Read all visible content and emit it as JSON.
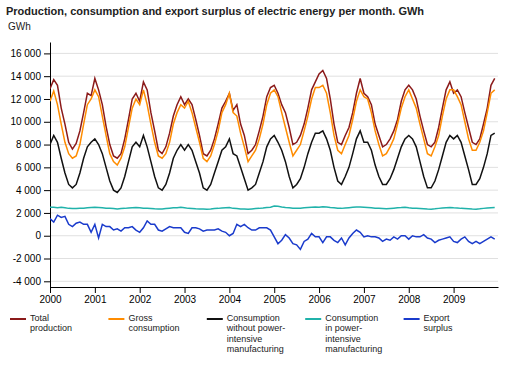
{
  "chart_data": {
    "type": "line",
    "title": "Production, consumption and export surplus of electric energy per month. GWh",
    "ylabel": "GWh",
    "x": [
      2000,
      2000.0833333333333,
      2000.1666666666667,
      2000.25,
      2000.3333333333333,
      2000.4166666666667,
      2000.5,
      2000.5833333333333,
      2000.6666666666667,
      2000.75,
      2000.8333333333333,
      2000.9166666666667,
      2001,
      2001.0833333333333,
      2001.1666666666667,
      2001.25,
      2001.3333333333333,
      2001.4166666666667,
      2001.5,
      2001.5833333333333,
      2001.6666666666667,
      2001.75,
      2001.8333333333333,
      2001.9166666666667,
      2002,
      2002.0833333333333,
      2002.1666666666667,
      2002.25,
      2002.3333333333333,
      2002.4166666666667,
      2002.5,
      2002.5833333333333,
      2002.6666666666667,
      2002.75,
      2002.8333333333333,
      2002.9166666666667,
      2003,
      2003.0833333333333,
      2003.1666666666667,
      2003.25,
      2003.3333333333333,
      2003.4166666666667,
      2003.5,
      2003.5833333333333,
      2003.6666666666667,
      2003.75,
      2003.8333333333333,
      2003.9166666666667,
      2004,
      2004.0833333333333,
      2004.1666666666667,
      2004.25,
      2004.3333333333333,
      2004.4166666666667,
      2004.5,
      2004.5833333333333,
      2004.6666666666667,
      2004.75,
      2004.8333333333333,
      2004.9166666666667,
      2005,
      2005.0833333333333,
      2005.1666666666667,
      2005.25,
      2005.3333333333333,
      2005.4166666666667,
      2005.5,
      2005.5833333333333,
      2005.6666666666667,
      2005.75,
      2005.8333333333333,
      2005.9166666666667,
      2006,
      2006.0833333333333,
      2006.1666666666667,
      2006.25,
      2006.3333333333333,
      2006.4166666666667,
      2006.5,
      2006.5833333333333,
      2006.6666666666667,
      2006.75,
      2006.8333333333333,
      2006.9166666666667,
      2007,
      2007.0833333333333,
      2007.1666666666667,
      2007.25,
      2007.3333333333333,
      2007.4166666666667,
      2007.5,
      2007.5833333333333,
      2007.6666666666667,
      2007.75,
      2007.8333333333333,
      2007.9166666666667,
      2008,
      2008.0833333333333,
      2008.1666666666667,
      2008.25,
      2008.3333333333333,
      2008.4166666666667,
      2008.5,
      2008.5833333333333,
      2008.6666666666667,
      2008.75,
      2008.8333333333333,
      2008.9166666666667,
      2009,
      2009.0833333333333,
      2009.1666666666667,
      2009.25,
      2009.3333333333333,
      2009.4166666666667,
      2009.5,
      2009.5833333333333,
      2009.6666666666667,
      2009.75,
      2009.8333333333333,
      2009.9166666666667
    ],
    "xlim": [
      2000,
      2009.99
    ],
    "xticks": [
      2000,
      2001,
      2002,
      2003,
      2004,
      2005,
      2006,
      2007,
      2008,
      2009
    ],
    "ylim": [
      -4500,
      17000
    ],
    "yticks": [
      {
        "value": -4000,
        "label": "-4 000"
      },
      {
        "value": -2000,
        "label": "-2 000"
      },
      0,
      {
        "value": 2000,
        "label": "2 000"
      },
      {
        "value": 4000,
        "label": "4 000"
      },
      {
        "value": 6000,
        "label": "6 000"
      },
      {
        "value": 8000,
        "label": "8 000"
      },
      {
        "value": 10000,
        "label": "10 000"
      },
      {
        "value": 12000,
        "label": "12 000"
      },
      {
        "value": 14000,
        "label": "14 000"
      },
      {
        "value": 16000,
        "label": "16 000"
      }
    ],
    "grid": true,
    "series": [
      {
        "name": "Total\nproduction",
        "color": "#8B1A1A",
        "values": [
          12900,
          13700,
          13200,
          11200,
          9800,
          8200,
          7600,
          8100,
          9200,
          10800,
          12500,
          12300,
          13800,
          12800,
          11500,
          9600,
          8000,
          7000,
          6800,
          7200,
          8500,
          10200,
          12000,
          12500,
          11800,
          13500,
          12800,
          10800,
          9200,
          7500,
          7200,
          7800,
          9000,
          10500,
          11500,
          12200,
          11500,
          12000,
          11500,
          10200,
          8800,
          7200,
          7000,
          7500,
          8500,
          9800,
          11200,
          11800,
          12500,
          11000,
          11500,
          9800,
          8800,
          7200,
          7500,
          8000,
          9200,
          10500,
          12200,
          13000,
          13200,
          12500,
          11500,
          10800,
          9500,
          8000,
          8200,
          8800,
          9800,
          11200,
          12800,
          13500,
          14200,
          14500,
          13800,
          12000,
          9800,
          8200,
          8000,
          8800,
          9500,
          10800,
          12500,
          13800,
          12500,
          12200,
          11500,
          9800,
          8800,
          7800,
          8000,
          8500,
          9200,
          10200,
          11800,
          12800,
          13200,
          12800,
          12000,
          10500,
          9200,
          8000,
          7800,
          8200,
          9500,
          11200,
          12800,
          13500,
          12500,
          12800,
          12200,
          10800,
          9500,
          8200,
          8000,
          8500,
          9800,
          11200,
          13200,
          13800
        ]
      },
      {
        "name": "Gross\nconsumption",
        "color": "#FF8C00",
        "values": [
          11800,
          12700,
          11500,
          9800,
          8200,
          7200,
          6800,
          7000,
          8000,
          9800,
          11500,
          12000,
          12800,
          12200,
          10500,
          8800,
          7200,
          6500,
          6200,
          6800,
          7800,
          9500,
          11200,
          12000,
          11500,
          12800,
          11500,
          9800,
          8200,
          7000,
          6800,
          7200,
          8200,
          9800,
          10800,
          11500,
          11200,
          11800,
          10800,
          9500,
          8200,
          6800,
          6500,
          7000,
          8000,
          9200,
          10800,
          11500,
          12500,
          10800,
          10500,
          9000,
          7800,
          6500,
          7000,
          7500,
          8500,
          9800,
          11500,
          12500,
          12800,
          12200,
          10800,
          9500,
          8200,
          7000,
          7500,
          8000,
          9200,
          10500,
          12000,
          13000,
          13000,
          13200,
          12500,
          10800,
          8800,
          7500,
          7200,
          8000,
          8800,
          10200,
          11800,
          12800,
          12200,
          12000,
          10800,
          9200,
          8000,
          7000,
          7200,
          7800,
          8500,
          9800,
          11200,
          12200,
          12800,
          12000,
          11200,
          9800,
          8500,
          7200,
          7000,
          7800,
          8800,
          10500,
          12000,
          12800,
          12800,
          12200,
          11500,
          10000,
          8500,
          7500,
          7500,
          8200,
          9200,
          10800,
          12500,
          12800
        ]
      },
      {
        "name": "Consumption\nwithout power-\nintensive\nmanufacturing",
        "color": "#111111",
        "values": [
          8000,
          8800,
          8200,
          6800,
          5500,
          4500,
          4200,
          4500,
          5500,
          6800,
          7800,
          8200,
          8500,
          8000,
          7200,
          6000,
          4800,
          4000,
          3800,
          4200,
          5200,
          6500,
          7800,
          8200,
          7800,
          8800,
          7800,
          6500,
          5200,
          4200,
          4000,
          4500,
          5500,
          6800,
          7500,
          8000,
          7500,
          8000,
          7500,
          6500,
          5500,
          4200,
          4000,
          4500,
          5500,
          6500,
          7500,
          7800,
          8500,
          7200,
          7000,
          6000,
          5000,
          4000,
          4200,
          4500,
          5500,
          6500,
          7800,
          8500,
          8800,
          8200,
          7500,
          6500,
          5200,
          4200,
          4500,
          5000,
          6000,
          7200,
          8200,
          9000,
          9000,
          9200,
          8500,
          7500,
          6000,
          4800,
          4500,
          5200,
          6000,
          7200,
          8500,
          9200,
          8200,
          8200,
          7500,
          6200,
          5200,
          4500,
          4500,
          5000,
          5800,
          6800,
          7800,
          8500,
          8800,
          8500,
          7800,
          6500,
          5200,
          4200,
          4200,
          4800,
          5800,
          7000,
          8200,
          8800,
          8500,
          8800,
          8200,
          7000,
          5800,
          4500,
          4500,
          5000,
          6000,
          7200,
          8800,
          9000
        ]
      },
      {
        "name": "Consumption\nin power-\nintensive\nmanufacturing",
        "color": "#20B2AA",
        "values": [
          2500,
          2500,
          2450,
          2500,
          2450,
          2400,
          2380,
          2380,
          2400,
          2420,
          2450,
          2480,
          2500,
          2480,
          2450,
          2420,
          2400,
          2380,
          2350,
          2380,
          2400,
          2430,
          2460,
          2480,
          2450,
          2420,
          2400,
          2380,
          2360,
          2350,
          2340,
          2380,
          2420,
          2450,
          2460,
          2500,
          2450,
          2400,
          2380,
          2360,
          2350,
          2340,
          2330,
          2350,
          2380,
          2400,
          2430,
          2460,
          2480,
          2400,
          2380,
          2350,
          2340,
          2320,
          2350,
          2380,
          2400,
          2430,
          2470,
          2500,
          2600,
          2580,
          2520,
          2480,
          2450,
          2420,
          2400,
          2420,
          2450,
          2470,
          2490,
          2510,
          2500,
          2550,
          2520,
          2480,
          2450,
          2420,
          2400,
          2430,
          2460,
          2490,
          2510,
          2520,
          2500,
          2480,
          2450,
          2420,
          2400,
          2380,
          2360,
          2390,
          2420,
          2450,
          2470,
          2500,
          2450,
          2420,
          2400,
          2380,
          2360,
          2340,
          2330,
          2360,
          2400,
          2430,
          2460,
          2480,
          2450,
          2430,
          2400,
          2380,
          2360,
          2340,
          2330,
          2360,
          2400,
          2430,
          2460,
          2480
        ]
      },
      {
        "name": "Export\nsurplus",
        "color": "#1A3BCC",
        "values": [
          1500,
          1200,
          1800,
          1600,
          1700,
          1000,
          800,
          1100,
          1200,
          1000,
          1000,
          300,
          1000,
          -200,
          1000,
          800,
          800,
          500,
          600,
          400,
          700,
          700,
          800,
          500,
          300,
          700,
          1300,
          1000,
          1000,
          500,
          400,
          600,
          800,
          700,
          700,
          700,
          300,
          200,
          700,
          700,
          600,
          400,
          500,
          500,
          500,
          600,
          400,
          300,
          0,
          200,
          1000,
          800,
          1000,
          700,
          500,
          500,
          700,
          700,
          700,
          500,
          -100,
          -700,
          -400,
          100,
          -200,
          -700,
          -800,
          -1200,
          -500,
          -300,
          200,
          -100,
          -100,
          -600,
          -100,
          -100,
          -400,
          -600,
          -200,
          -800,
          -200,
          200,
          500,
          300,
          -100,
          0,
          -100,
          -100,
          -200,
          -500,
          -300,
          -400,
          -100,
          -300,
          0,
          0,
          -300,
          0,
          -100,
          -100,
          100,
          -200,
          -300,
          -600,
          -400,
          -300,
          -200,
          -100,
          -500,
          -600,
          -300,
          -100,
          -500,
          -700,
          -500,
          -700,
          -500,
          -300,
          -100,
          -300
        ]
      }
    ]
  }
}
